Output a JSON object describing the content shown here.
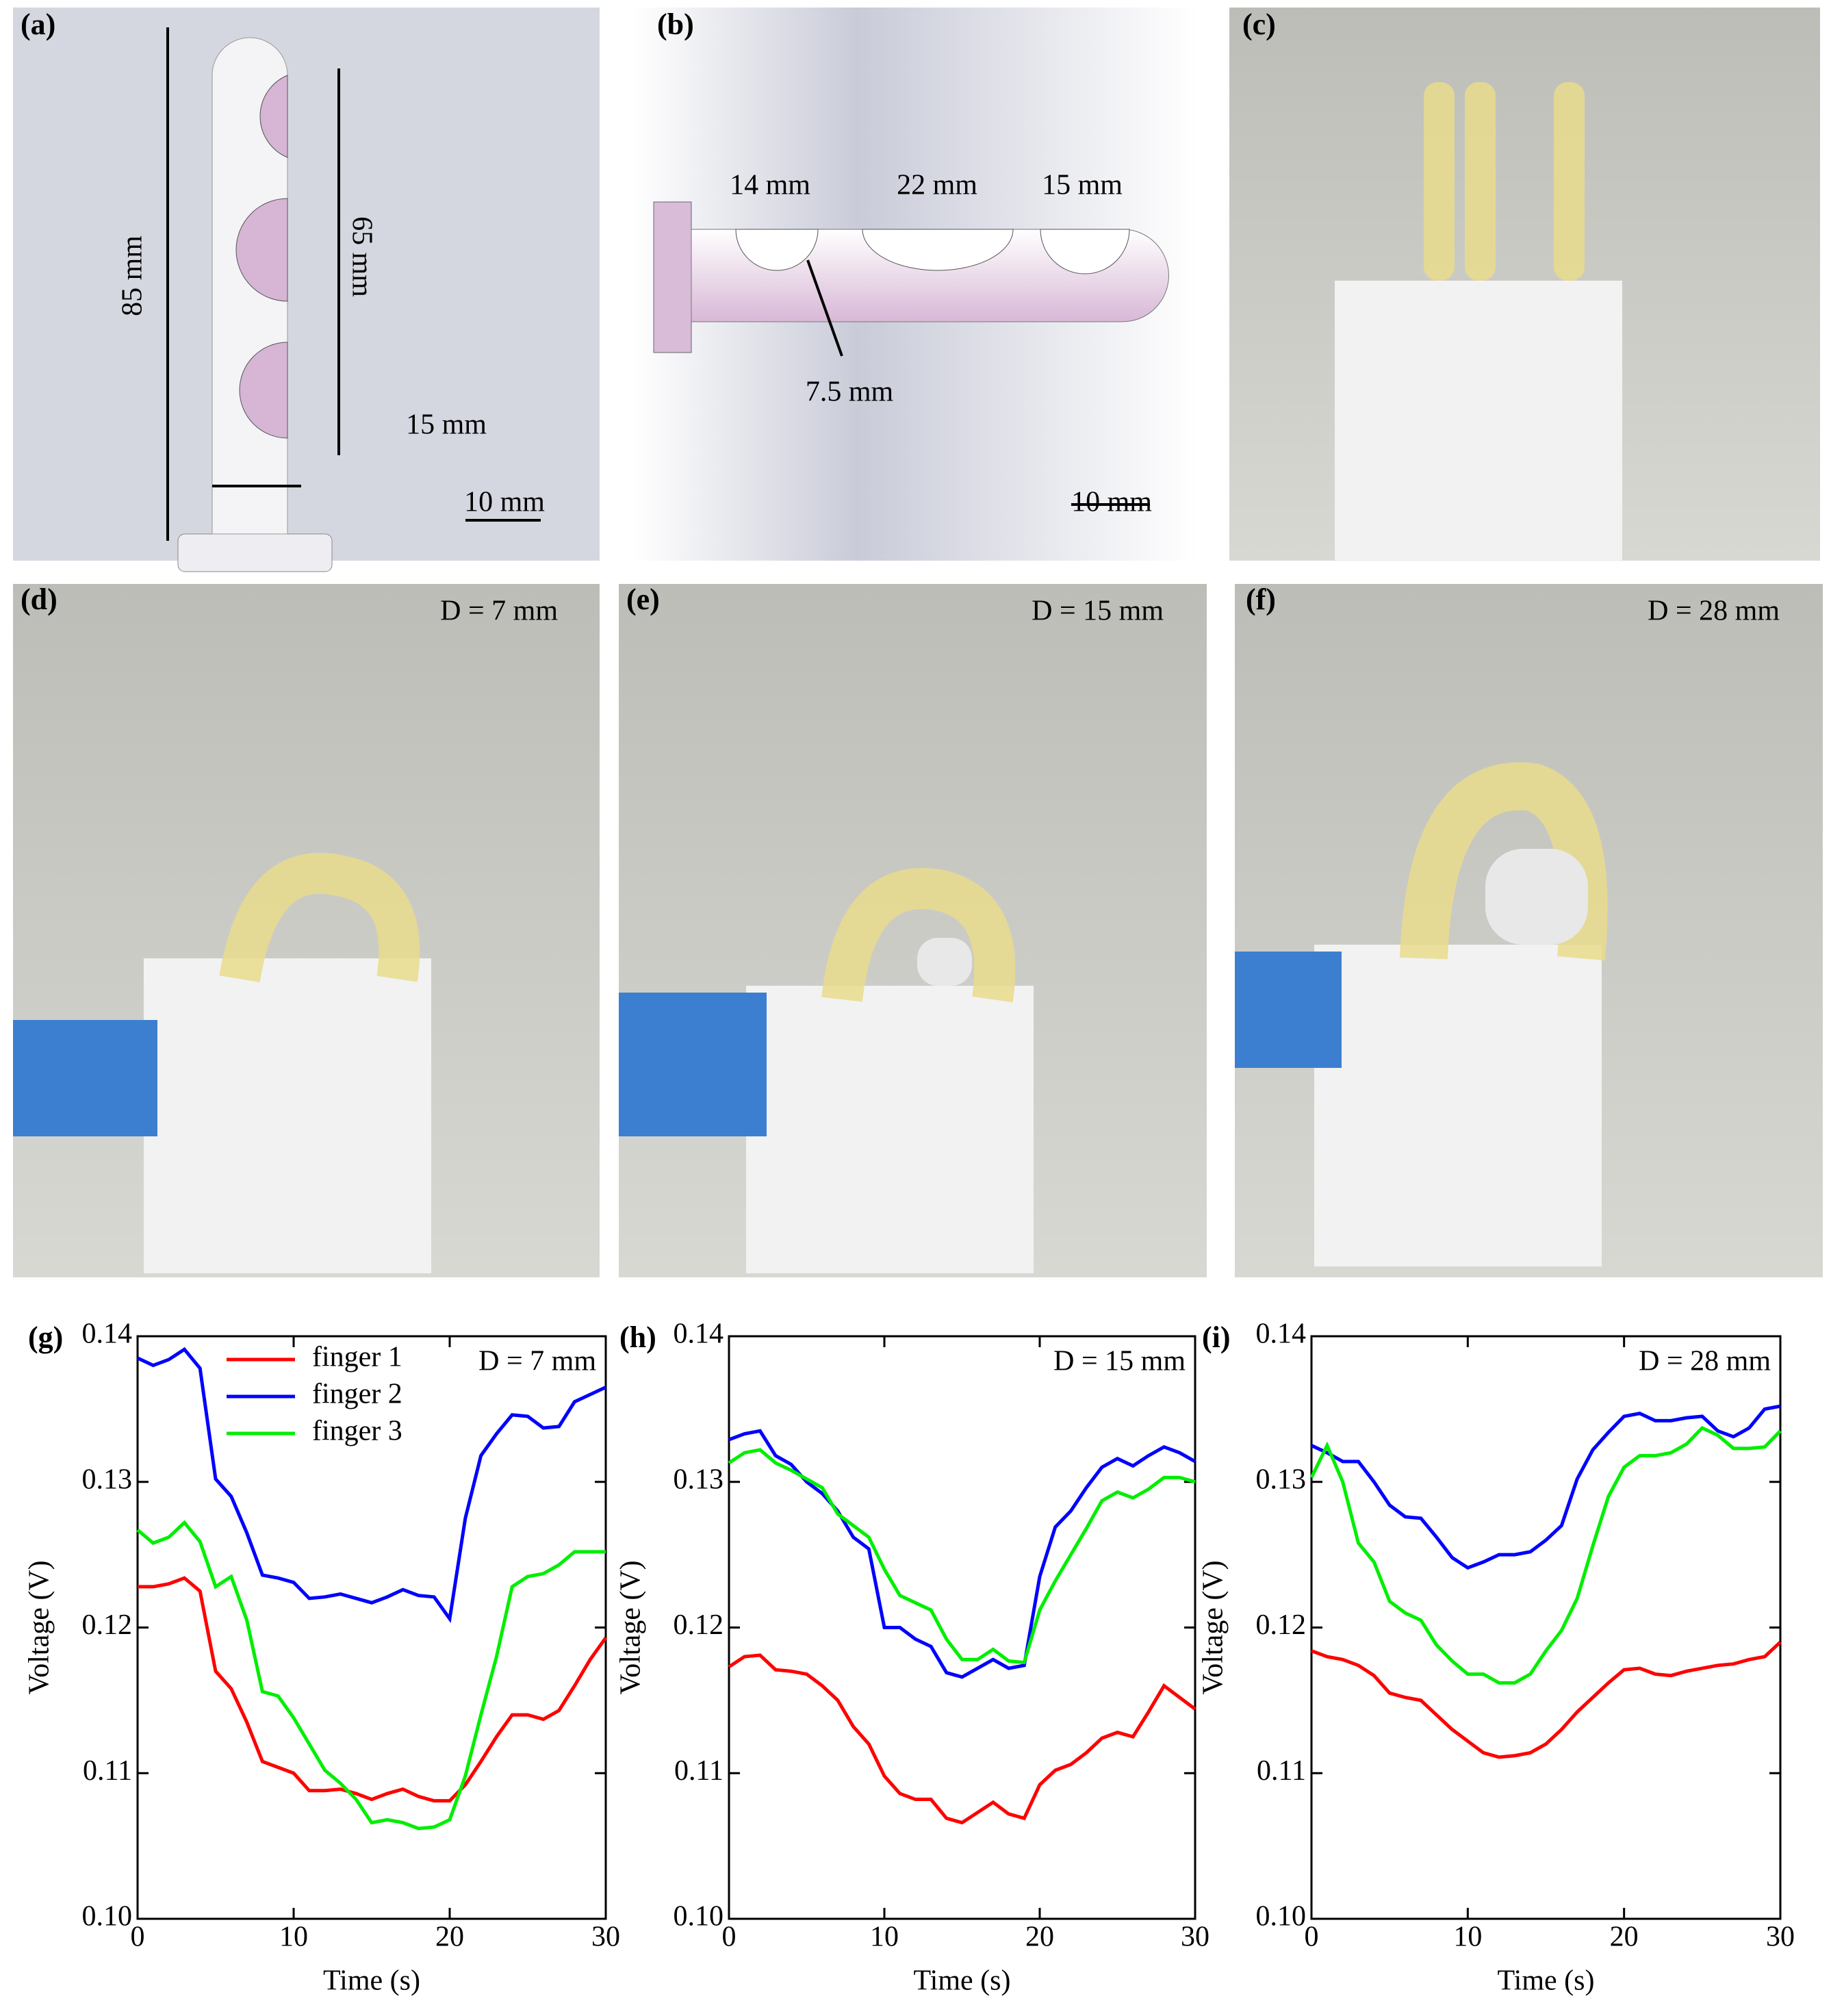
{
  "panels": [
    {
      "label": "(a)",
      "annotations": [
        "85 mm",
        "65 mm",
        "15 mm",
        "10 mm"
      ]
    },
    {
      "label": "(b)",
      "annotations": [
        "14 mm",
        "22 mm",
        "15 mm",
        "7.5 mm",
        "10 mm"
      ]
    },
    {
      "label": "(c)"
    },
    {
      "label": "(d)",
      "caption": "D = 7 mm"
    },
    {
      "label": "(e)",
      "caption": "D = 15 mm"
    },
    {
      "label": "(f)",
      "caption": "D = 28 mm"
    }
  ],
  "chart_data": [
    {
      "type": "line",
      "panel_label": "(g)",
      "annotation": "D = 7 mm",
      "x_label": "Time (s)",
      "y_label": "Voltage (V)",
      "xlim": [
        0,
        30
      ],
      "xticks": [
        0,
        10,
        20,
        30
      ],
      "ylim": [
        0.1,
        0.14
      ],
      "yticks": [
        {
          "value": 0.1,
          "label": "0.10"
        },
        0.11,
        0.12,
        0.13,
        0.14
      ],
      "legend": "upper left",
      "x": [
        0,
        1,
        2,
        3,
        4,
        5,
        6,
        7,
        8,
        9,
        10,
        11,
        12,
        13,
        14,
        15,
        16,
        17,
        18,
        19,
        20,
        21,
        22,
        23,
        24,
        25,
        26,
        27,
        28,
        29,
        30
      ],
      "series": [
        {
          "name": "finger 1",
          "color": "#ff0000",
          "values": [
            0.1228,
            0.1228,
            0.123,
            0.1234,
            0.1225,
            0.117,
            0.1158,
            0.1135,
            0.1108,
            0.1104,
            0.11,
            0.1088,
            0.1088,
            0.1089,
            0.1086,
            0.1082,
            0.1086,
            0.1089,
            0.1084,
            0.1081,
            0.1081,
            0.1092,
            0.1108,
            0.1125,
            0.114,
            0.114,
            0.1137,
            0.1143,
            0.116,
            0.1178,
            0.1193
          ]
        },
        {
          "name": "finger 2",
          "color": "#0000ff",
          "values": [
            0.1385,
            0.138,
            0.1384,
            0.1391,
            0.1378,
            0.1302,
            0.129,
            0.1265,
            0.1236,
            0.1234,
            0.1231,
            0.122,
            0.1221,
            0.1223,
            0.122,
            0.1217,
            0.1221,
            0.1226,
            0.1222,
            0.1221,
            0.1206,
            0.1275,
            0.1318,
            0.1333,
            0.1346,
            0.1345,
            0.1337,
            0.1338,
            0.1355,
            0.136,
            0.1365
          ]
        },
        {
          "name": "finger 3",
          "color": "#00ee00",
          "values": [
            0.1267,
            0.1258,
            0.1262,
            0.1272,
            0.1259,
            0.1228,
            0.1235,
            0.1205,
            0.1156,
            0.1153,
            0.1138,
            0.112,
            0.1102,
            0.1093,
            0.1082,
            0.1066,
            0.1068,
            0.1066,
            0.1062,
            0.1063,
            0.1068,
            0.1098,
            0.114,
            0.118,
            0.1228,
            0.1235,
            0.1237,
            0.1243,
            0.1252,
            0.1252,
            0.1252
          ]
        }
      ]
    },
    {
      "type": "line",
      "panel_label": "(h)",
      "annotation": "D = 15 mm",
      "x_label": "Time (s)",
      "y_label": "Voltage (V)",
      "xlim": [
        0,
        30
      ],
      "xticks": [
        0,
        10,
        20,
        30
      ],
      "ylim": [
        0.1,
        0.14
      ],
      "yticks": [
        {
          "value": 0.1,
          "label": "0.10"
        },
        0.11,
        0.12,
        0.13,
        0.14
      ],
      "x": [
        0,
        1,
        2,
        3,
        4,
        5,
        6,
        7,
        8,
        9,
        10,
        11,
        12,
        13,
        14,
        15,
        16,
        17,
        18,
        19,
        20,
        21,
        22,
        23,
        24,
        25,
        26,
        27,
        28,
        29,
        30
      ],
      "series": [
        {
          "color": "#ff0000",
          "values": [
            0.1173,
            0.118,
            0.1181,
            0.1171,
            0.117,
            0.1168,
            0.116,
            0.115,
            0.1132,
            0.112,
            0.1098,
            0.1086,
            0.1082,
            0.1082,
            0.1069,
            0.1066,
            0.1073,
            0.108,
            0.1072,
            0.1069,
            0.1092,
            0.1102,
            0.1106,
            0.1114,
            0.1124,
            0.1128,
            0.1125,
            0.1142,
            0.116,
            0.1152,
            0.1144
          ]
        },
        {
          "color": "#0000ff",
          "values": [
            0.1329,
            0.1333,
            0.1335,
            0.1318,
            0.1312,
            0.13,
            0.1292,
            0.128,
            0.1262,
            0.1254,
            0.12,
            0.12,
            0.1192,
            0.1187,
            0.1169,
            0.1166,
            0.1172,
            0.1178,
            0.1172,
            0.1174,
            0.1235,
            0.1269,
            0.128,
            0.1296,
            0.131,
            0.1316,
            0.1311,
            0.1318,
            0.1324,
            0.132,
            0.1314
          ]
        },
        {
          "color": "#00ee00",
          "values": [
            0.1313,
            0.132,
            0.1322,
            0.1313,
            0.1308,
            0.1302,
            0.1296,
            0.1278,
            0.127,
            0.1262,
            0.124,
            0.1222,
            0.1217,
            0.1212,
            0.1192,
            0.1178,
            0.1178,
            0.1185,
            0.1177,
            0.1176,
            0.1212,
            0.1232,
            0.125,
            0.1268,
            0.1287,
            0.1293,
            0.1289,
            0.1295,
            0.1303,
            0.1303,
            0.13
          ]
        }
      ]
    },
    {
      "type": "line",
      "panel_label": "(i)",
      "annotation": "D = 28 mm",
      "x_label": "Time (s)",
      "y_label": "Voltage (V)",
      "xlim": [
        0,
        30
      ],
      "xticks": [
        0,
        10,
        20,
        30
      ],
      "ylim": [
        0.1,
        0.14
      ],
      "yticks": [
        {
          "value": 0.1,
          "label": "0.10"
        },
        0.11,
        0.12,
        0.13,
        0.14
      ],
      "x": [
        0,
        1,
        2,
        3,
        4,
        5,
        6,
        7,
        8,
        9,
        10,
        11,
        12,
        13,
        14,
        15,
        16,
        17,
        18,
        19,
        20,
        21,
        22,
        23,
        24,
        25,
        26,
        27,
        28,
        29,
        30
      ],
      "series": [
        {
          "color": "#ff0000",
          "values": [
            0.1184,
            0.118,
            0.1178,
            0.1174,
            0.1167,
            0.1155,
            0.1152,
            0.115,
            0.114,
            0.113,
            0.1122,
            0.1114,
            0.1111,
            0.1112,
            0.1114,
            0.112,
            0.113,
            0.1142,
            0.1152,
            0.1162,
            0.1171,
            0.1172,
            0.1168,
            0.1167,
            0.117,
            0.1172,
            0.1174,
            0.1175,
            0.1178,
            0.118,
            0.119
          ]
        },
        {
          "color": "#0000ff",
          "values": [
            0.1325,
            0.132,
            0.1314,
            0.1314,
            0.13,
            0.1284,
            0.1276,
            0.1275,
            0.1262,
            0.1248,
            0.1241,
            0.1245,
            0.125,
            0.125,
            0.1252,
            0.126,
            0.127,
            0.1302,
            0.1322,
            0.1334,
            0.1345,
            0.1347,
            0.1342,
            0.1342,
            0.1344,
            0.1345,
            0.1335,
            0.1331,
            0.1337,
            0.135,
            0.1352
          ]
        },
        {
          "color": "#00ee00",
          "values": [
            0.1303,
            0.1325,
            0.13,
            0.1258,
            0.1245,
            0.1218,
            0.121,
            0.1205,
            0.1188,
            0.1177,
            0.1168,
            0.1168,
            0.1162,
            0.1162,
            0.1168,
            0.1184,
            0.1198,
            0.122,
            0.1256,
            0.129,
            0.131,
            0.1318,
            0.1318,
            0.132,
            0.1326,
            0.1337,
            0.1332,
            0.1323,
            0.1323,
            0.1324,
            0.1335
          ]
        }
      ]
    }
  ]
}
